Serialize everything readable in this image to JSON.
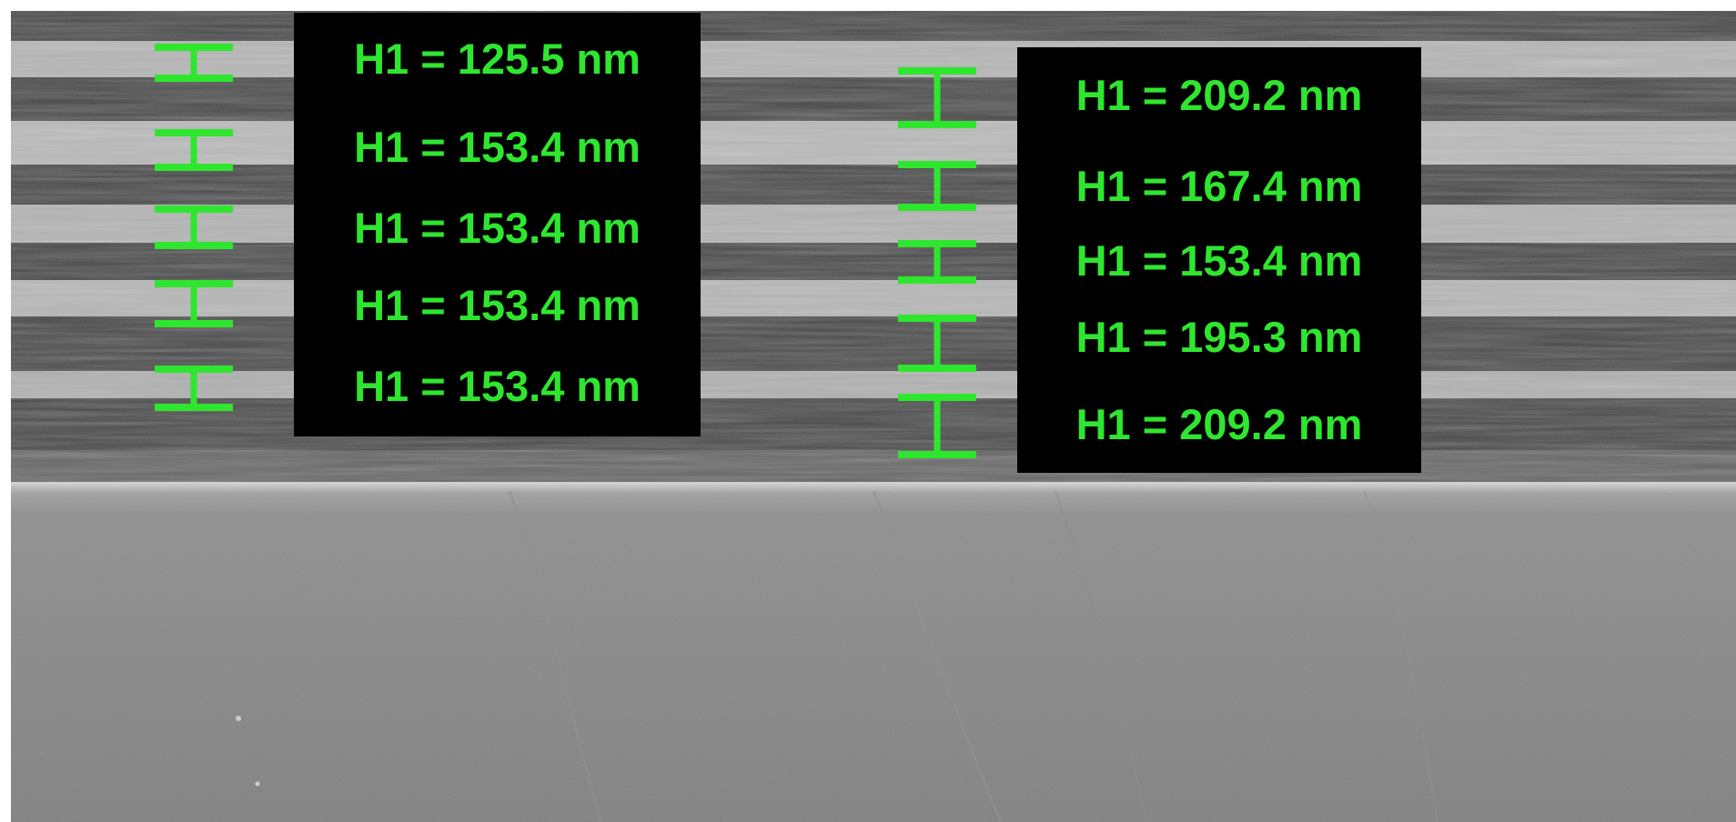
{
  "image": {
    "description_kind": "SEM cross-section micrograph of a periodic multilayer stack on a substrate, with thickness measurement overlays",
    "accent_color": "#2FE62F",
    "label_background": "#000000"
  },
  "measurement_sets": [
    {
      "name": "left",
      "markers": 5,
      "labels": [
        "H1 = 125.5 nm",
        "H1 = 153.4 nm",
        "H1 = 153.4 nm",
        "H1 = 153.4 nm",
        "H1 = 153.4 nm"
      ]
    },
    {
      "name": "right",
      "markers": 5,
      "labels": [
        "H1 = 209.2 nm",
        "H1 = 167.4 nm",
        "H1 = 153.4 nm",
        "H1 = 195.3 nm",
        "H1 = 209.2 nm"
      ]
    }
  ]
}
